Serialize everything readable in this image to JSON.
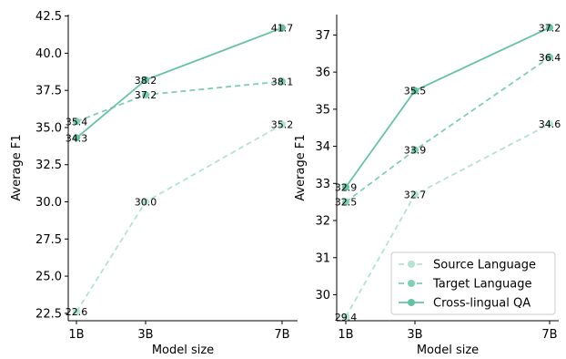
{
  "chart_data": [
    {
      "type": "line",
      "categories": [
        "1B",
        "3B",
        "7B"
      ],
      "xlabel": "Model size",
      "ylabel": "Average F1",
      "ylim": [
        22.0,
        42.6
      ],
      "yticks": [
        "22.5",
        "25.0",
        "27.5",
        "30.0",
        "32.5",
        "35.0",
        "37.5",
        "40.0",
        "42.5"
      ],
      "series": [
        {
          "name": "Source Language",
          "values": [
            22.6,
            30.0,
            35.2
          ],
          "labels": [
            "22.6",
            "30.0",
            "35.2"
          ],
          "color": "#b2e3d3",
          "dash": "6,4"
        },
        {
          "name": "Target Language",
          "values": [
            35.4,
            37.2,
            38.1
          ],
          "labels": [
            "35.4",
            "37.2",
            "38.1"
          ],
          "color": "#7fcfb5",
          "dash": "6,4"
        },
        {
          "name": "Cross-lingual QA",
          "values": [
            34.3,
            38.2,
            41.7
          ],
          "labels": [
            "34.3",
            "38.2",
            "41.7"
          ],
          "color": "#66c2a5",
          "dash": ""
        }
      ],
      "legend": "none"
    },
    {
      "type": "line",
      "categories": [
        "1B",
        "3B",
        "7B"
      ],
      "xlabel": "Model size",
      "ylabel": "Average F1",
      "ylim": [
        29.3,
        37.55
      ],
      "yticks": [
        "30",
        "31",
        "32",
        "33",
        "34",
        "35",
        "36",
        "37"
      ],
      "series": [
        {
          "name": "Source Language",
          "values": [
            29.4,
            32.7,
            34.6
          ],
          "labels": [
            "29.4",
            "32.7",
            "34.6"
          ],
          "color": "#b2e3d3",
          "dash": "6,4"
        },
        {
          "name": "Target Language",
          "values": [
            32.5,
            33.9,
            36.4
          ],
          "labels": [
            "32.5",
            "33.9",
            "36.4"
          ],
          "color": "#7fcfb5",
          "dash": "6,4"
        },
        {
          "name": "Cross-lingual QA",
          "values": [
            32.9,
            35.5,
            37.2
          ],
          "labels": [
            "32.9",
            "35.5",
            "37.2"
          ],
          "color": "#66c2a5",
          "dash": ""
        }
      ],
      "legend": "lower-right"
    }
  ]
}
